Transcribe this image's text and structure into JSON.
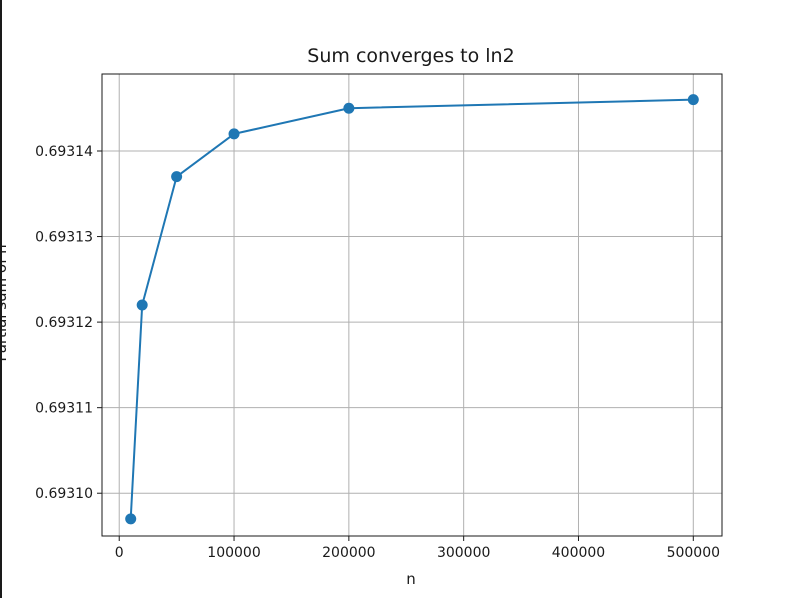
{
  "chart_data": {
    "type": "line",
    "title": "Sum converges to ln2",
    "xlabel": "n",
    "ylabel": "Partial sum of n",
    "x": [
      10000,
      20000,
      50000,
      100000,
      200000,
      500000
    ],
    "series": [
      {
        "values": [
          0.693097,
          0.693122,
          0.693137,
          0.693142,
          0.693145,
          0.693146
        ]
      }
    ],
    "xlim": [
      -15000,
      525000
    ],
    "ylim": [
      0.693095,
      0.693149
    ],
    "xticks": [
      0,
      100000,
      200000,
      300000,
      400000,
      500000
    ],
    "xtick_labels": [
      "0",
      "100000",
      "200000",
      "300000",
      "400000",
      "500000"
    ],
    "yticks": [
      0.6931,
      0.69311,
      0.69312,
      0.69313,
      0.69314
    ],
    "ytick_labels": [
      "0.69310",
      "0.69311",
      "0.69312",
      "0.69313",
      "0.69314"
    ],
    "grid": true,
    "markers": true,
    "line_color": "#1f77b4"
  }
}
